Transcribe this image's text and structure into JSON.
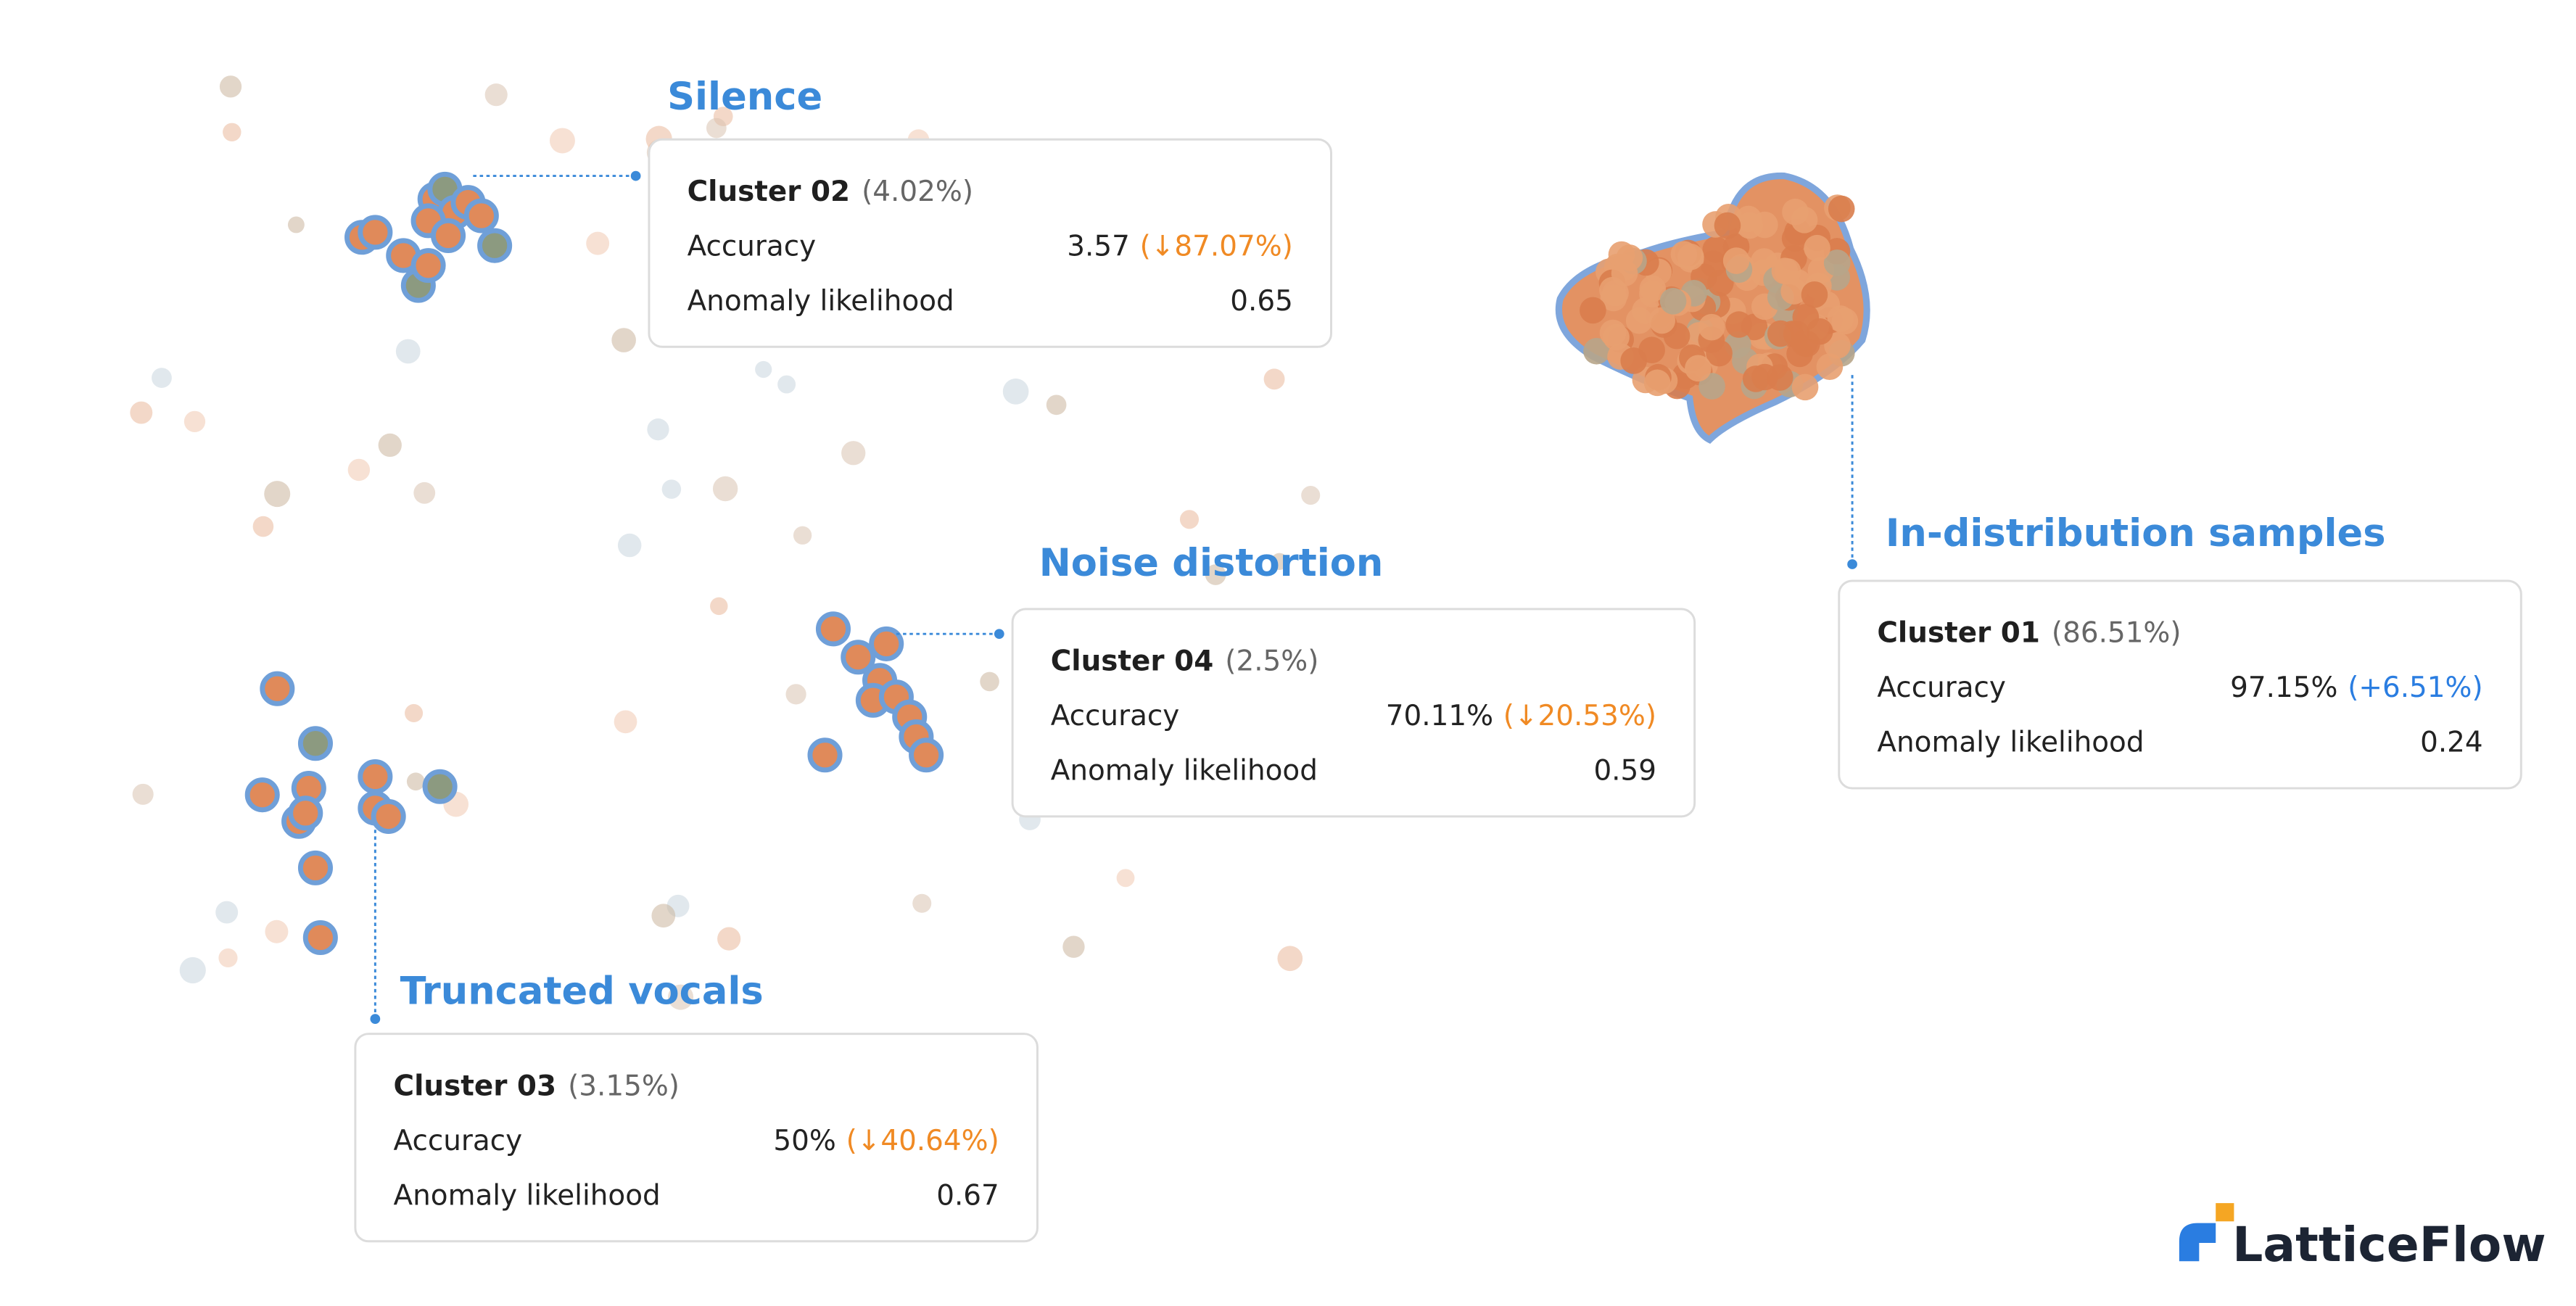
{
  "clusters": [
    {
      "title": "Silence",
      "cluster": "Cluster 02",
      "share": "(4.02%)",
      "accuracy_label": "Accuracy",
      "accuracy": "3.57",
      "accuracy_change": "(↓87.07%)",
      "change_color": "#f08a24",
      "anomaly_label": "Anomaly likelihood",
      "anomaly": "0.65"
    },
    {
      "title": "Noise distortion",
      "cluster": "Cluster 04",
      "share": "(2.5%)",
      "accuracy_label": "Accuracy",
      "accuracy": "70.11%",
      "accuracy_change": "(↓20.53%)",
      "change_color": "#f08a24",
      "anomaly_label": "Anomaly likelihood",
      "anomaly": "0.59"
    },
    {
      "title": "In-distribution samples",
      "cluster": "Cluster 01",
      "share": "(86.51%)",
      "accuracy_label": "Accuracy",
      "accuracy": "97.15%",
      "accuracy_change": "(+6.51%)",
      "change_color": "#2a7de1",
      "anomaly_label": "Anomaly likelihood",
      "anomaly": "0.24"
    },
    {
      "title": "Truncated vocals",
      "cluster": "Cluster 03",
      "share": "(3.15%)",
      "accuracy_label": "Accuracy",
      "accuracy": "50%",
      "accuracy_change": "(↓40.64%)",
      "change_color": "#f08a24",
      "anomaly_label": "Anomaly likelihood",
      "anomaly": "0.67"
    }
  ],
  "logo": "LatticeFlow"
}
